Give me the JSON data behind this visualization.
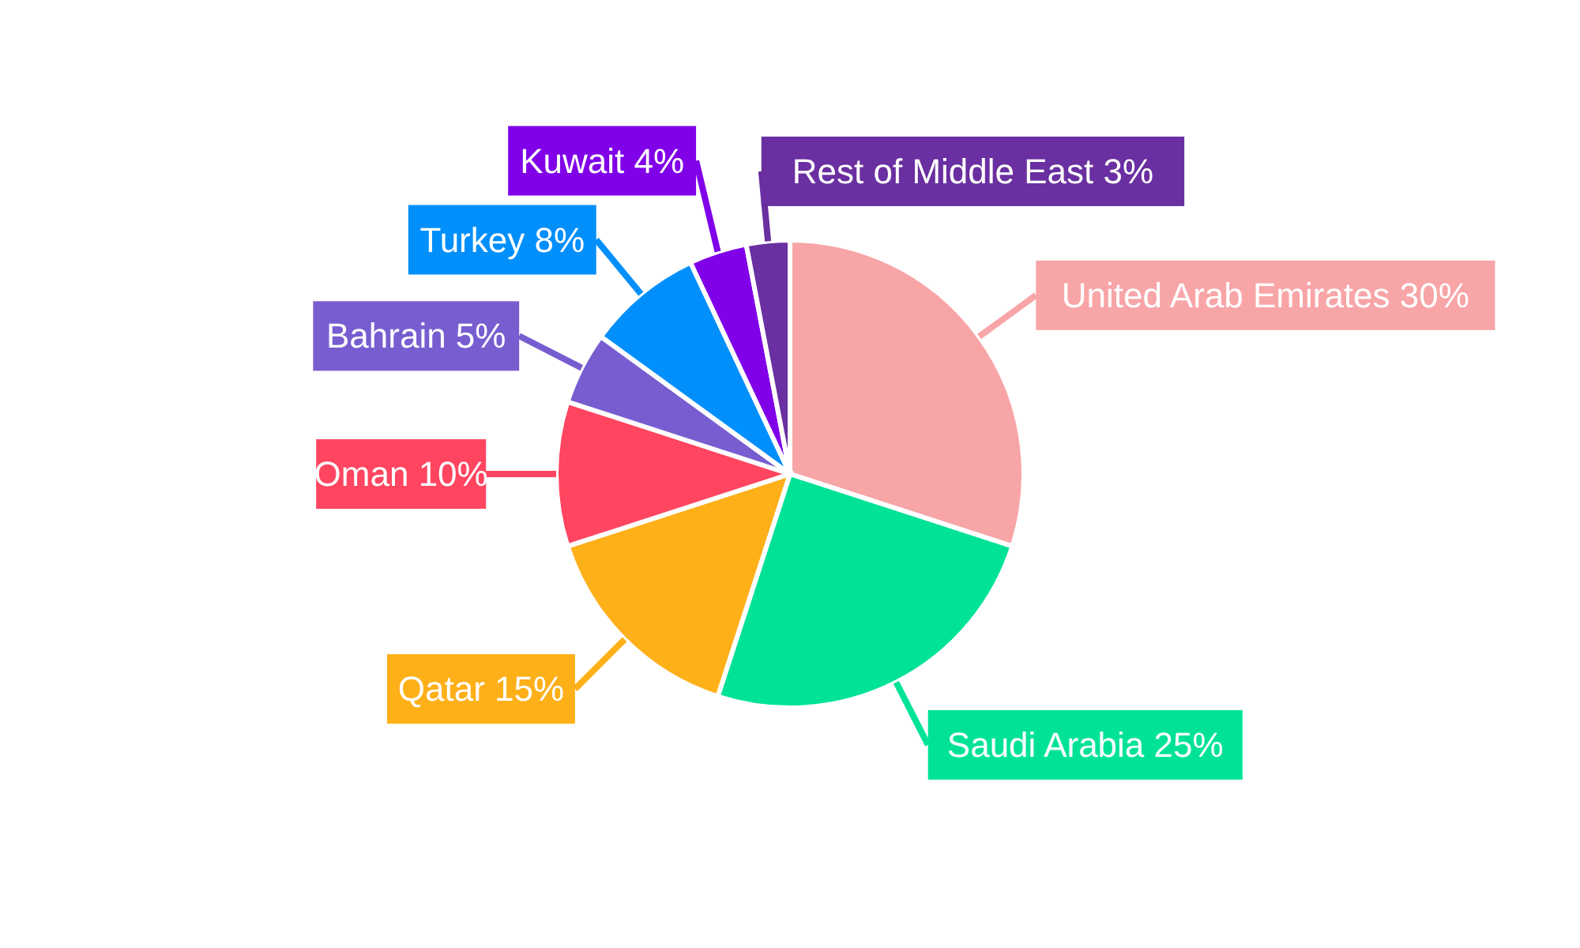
{
  "chart_data": {
    "type": "pie",
    "categories": [
      "United Arab Emirates",
      "Saudi Arabia",
      "Qatar",
      "Oman",
      "Bahrain",
      "Turkey",
      "Kuwait",
      "Rest of Middle East"
    ],
    "values": [
      30,
      25,
      15,
      10,
      5,
      8,
      4,
      3
    ],
    "colors": [
      "#f8a5a8",
      "#00e396",
      "#feb019",
      "#ff4560",
      "#775dd0",
      "#008ffb",
      "#8000e8",
      "#6a2fa0"
    ],
    "value_labels": [
      "30%",
      "25%",
      "15%",
      "10%",
      "5%",
      "8%",
      "4%",
      "3%"
    ]
  }
}
